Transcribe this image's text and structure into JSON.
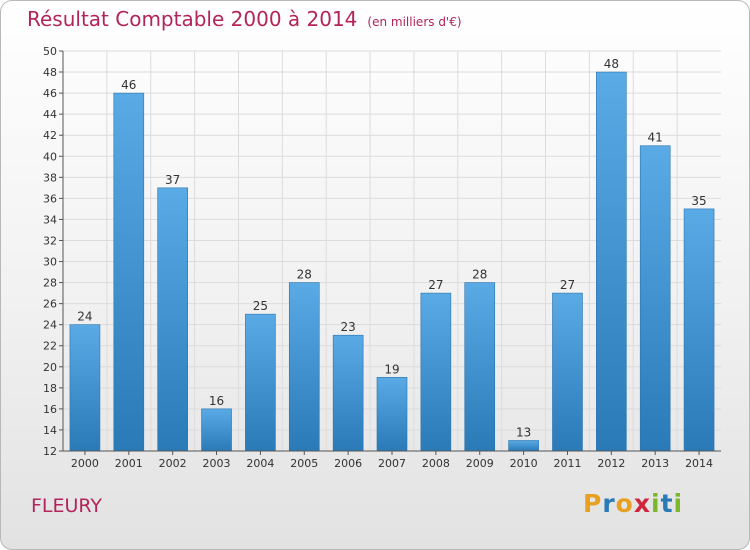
{
  "header": {
    "title": "Résultat Comptable 2000 à 2014",
    "subtitle": "(en milliers d'€)"
  },
  "footer": {
    "commune": "FLEURY",
    "logo_letters": [
      "P",
      "r",
      "o",
      "x",
      "i",
      "t",
      "i"
    ]
  },
  "colors": {
    "title": "#b3245a",
    "bar_light": "#5aaae6",
    "bar_dark": "#2a7ab8",
    "grid": "#dcdcdc",
    "axis": "#555555"
  },
  "chart_data": {
    "type": "bar",
    "title": "Résultat Comptable 2000 à 2014",
    "xlabel": "",
    "ylabel": "en milliers d'€",
    "categories": [
      "2000",
      "2001",
      "2002",
      "2003",
      "2004",
      "2005",
      "2006",
      "2007",
      "2008",
      "2009",
      "2010",
      "2011",
      "2012",
      "2013",
      "2014"
    ],
    "values": [
      24,
      46,
      37,
      16,
      25,
      28,
      23,
      19,
      27,
      28,
      13,
      27,
      48,
      41,
      35
    ],
    "ylim": [
      12,
      50
    ],
    "ytick_step": 2,
    "grid": true
  }
}
